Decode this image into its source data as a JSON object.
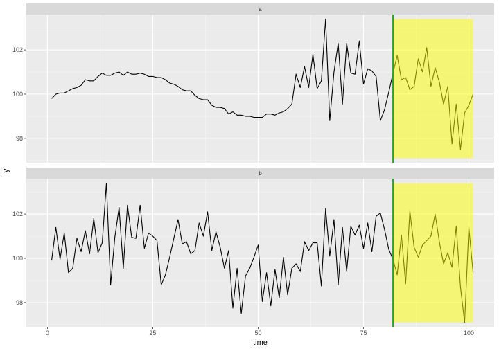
{
  "chart_data": {
    "type": "line",
    "xlabel": "time",
    "ylabel": "y",
    "xlim": [
      -5,
      106
    ],
    "ylim": [
      96.9,
      103.6
    ],
    "x_ticks": [
      0,
      25,
      50,
      75,
      100
    ],
    "y_ticks": [
      98,
      100,
      102
    ],
    "grid": true,
    "facets": [
      {
        "label": "a",
        "highlight": {
          "x_start": 82,
          "x_end": 101,
          "y_start": 97.1,
          "y_end": 103.4
        },
        "vline_x": 82,
        "series": [
          {
            "x": [
              1,
              2,
              3,
              4,
              5,
              6,
              7,
              8,
              9,
              10,
              11,
              12,
              13,
              14,
              15,
              16,
              17,
              18,
              19,
              20,
              21,
              22,
              23,
              24,
              25,
              26,
              27,
              28,
              29,
              30,
              31,
              32,
              33,
              34,
              35,
              36,
              37,
              38,
              39,
              40,
              41,
              42,
              43,
              44,
              45,
              46,
              47,
              48,
              49,
              50,
              51,
              52,
              53,
              54,
              55,
              56,
              57,
              58,
              59,
              60,
              61,
              62,
              63,
              64,
              65,
              66,
              67,
              68,
              69,
              70,
              71,
              72,
              73,
              74,
              75,
              76,
              77,
              78,
              79,
              80,
              81,
              82,
              83,
              84,
              85,
              86,
              87,
              88,
              89,
              90,
              91,
              92,
              93,
              94,
              95,
              96,
              97,
              98,
              99,
              100,
              101
            ],
            "values": [
              99.8,
              100.0,
              100.05,
              100.05,
              100.15,
              100.25,
              100.3,
              100.4,
              100.65,
              100.6,
              100.6,
              100.8,
              100.95,
              100.85,
              100.85,
              100.95,
              101.0,
              100.85,
              101.0,
              100.9,
              100.9,
              100.95,
              100.9,
              100.8,
              100.8,
              100.75,
              100.75,
              100.65,
              100.5,
              100.45,
              100.35,
              100.2,
              100.15,
              100.15,
              99.95,
              99.8,
              99.75,
              99.75,
              99.5,
              99.4,
              99.4,
              99.35,
              99.1,
              99.2,
              99.05,
              99.05,
              99.0,
              99.0,
              98.95,
              98.95,
              98.95,
              99.1,
              99.1,
              99.05,
              99.15,
              99.2,
              99.35,
              99.55,
              100.9,
              100.3,
              101.25,
              100.3,
              101.8,
              100.25,
              100.6,
              103.4,
              98.8,
              101.0,
              102.3,
              99.55,
              102.3,
              100.95,
              100.9,
              102.4,
              100.45,
              101.15,
              101.05,
              100.8,
              98.8,
              99.3,
              100.1,
              100.95,
              101.75,
              100.65,
              100.75,
              100.2,
              100.35,
              101.6,
              101.0,
              102.1,
              100.35,
              101.2,
              100.55,
              99.55,
              100.35,
              97.75,
              99.55,
              97.5,
              99.15,
              99.5,
              100.0
            ]
          }
        ]
      },
      {
        "label": "b",
        "highlight": {
          "x_start": 82,
          "x_end": 101,
          "y_start": 97.1,
          "y_end": 103.4
        },
        "vline_x": 82,
        "series": [
          {
            "x": [
              1,
              2,
              3,
              4,
              5,
              6,
              7,
              8,
              9,
              10,
              11,
              12,
              13,
              14,
              15,
              16,
              17,
              18,
              19,
              20,
              21,
              22,
              23,
              24,
              25,
              26,
              27,
              28,
              29,
              30,
              31,
              32,
              33,
              34,
              35,
              36,
              37,
              38,
              39,
              40,
              41,
              42,
              43,
              44,
              45,
              46,
              47,
              48,
              49,
              50,
              51,
              52,
              53,
              54,
              55,
              56,
              57,
              58,
              59,
              60,
              61,
              62,
              63,
              64,
              65,
              66,
              67,
              68,
              69,
              70,
              71,
              72,
              73,
              74,
              75,
              76,
              77,
              78,
              79,
              80,
              81,
              82,
              83,
              84,
              85,
              86,
              87,
              88,
              89,
              90,
              91,
              92,
              93,
              94,
              95,
              96,
              97,
              98,
              99,
              100,
              101
            ],
            "values": [
              99.9,
              101.4,
              99.95,
              101.15,
              99.35,
              99.55,
              100.9,
              100.3,
              101.25,
              100.2,
              101.8,
              100.25,
              100.7,
              103.4,
              98.8,
              100.95,
              102.3,
              99.55,
              102.4,
              100.95,
              100.9,
              102.4,
              100.45,
              101.15,
              101.0,
              100.8,
              98.8,
              99.25,
              100.05,
              100.9,
              101.75,
              100.65,
              100.75,
              100.2,
              100.35,
              101.6,
              101.0,
              102.1,
              100.35,
              101.2,
              100.5,
              99.55,
              100.35,
              97.75,
              99.55,
              97.5,
              99.2,
              99.55,
              100.05,
              100.6,
              98.05,
              99.35,
              97.85,
              99.5,
              98.2,
              100.05,
              98.35,
              99.55,
              99.75,
              99.4,
              100.75,
              100.35,
              100.7,
              100.7,
              98.75,
              102.25,
              100.1,
              101.75,
              98.8,
              101.4,
              99.4,
              101.45,
              101.05,
              101.5,
              100.45,
              101.6,
              100.3,
              101.9,
              102.05,
              101.3,
              100.4,
              99.95,
              99.25,
              101.05,
              98.85,
              102.15,
              100.5,
              100.05,
              100.6,
              100.8,
              101.0,
              102.0,
              100.75,
              99.75,
              100.25,
              99.6,
              101.45,
              98.7,
              97.1,
              101.4,
              99.35
            ]
          }
        ]
      }
    ]
  }
}
